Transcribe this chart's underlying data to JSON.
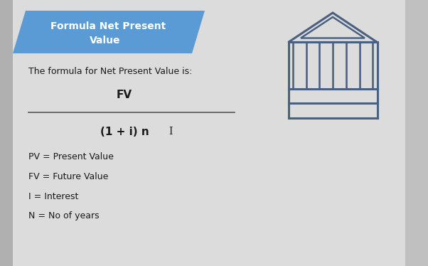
{
  "bg_color": "#e0e0e0",
  "panel_color": "#d8d8d8",
  "header_bg_color": "#5b9bd5",
  "header_text_line1": "Formula Net Present",
  "header_text_line2": "Value",
  "header_text_color": "#ffffff",
  "body_text_color": "#1a1a1a",
  "intro_text": "The formula for Net Present Value is:",
  "numerator": "FV",
  "denominator": "(1 + i) n",
  "cursor_symbol": "I",
  "definitions": [
    "PV = Present Value",
    "FV = Future Value",
    "I = Interest",
    "N = No of years"
  ],
  "line_color": "#555555",
  "icon_color": "#4a6080",
  "header_font_size": 10,
  "body_font_size": 9,
  "formula_font_size": 10,
  "def_font_size": 9
}
